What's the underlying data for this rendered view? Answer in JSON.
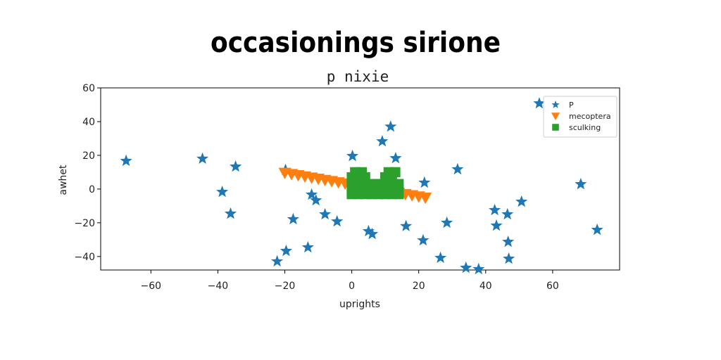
{
  "chart_data": {
    "type": "scatter",
    "title": "occasionings sirione",
    "subtitle": "p nixie",
    "x_label": "uprights",
    "y_label": "awhet",
    "xlim": [
      -75,
      80
    ],
    "ylim": [
      -48,
      60
    ],
    "xticks": [
      {
        "value": -60,
        "label": "−60"
      },
      {
        "value": -40,
        "label": "−40"
      },
      {
        "value": -20,
        "label": "−20"
      },
      0,
      20,
      40,
      60
    ],
    "yticks": [
      {
        "value": -40,
        "label": "−40"
      },
      {
        "value": -20,
        "label": "−20"
      },
      0,
      20,
      40,
      60
    ],
    "legend": "upper right",
    "series": [
      {
        "name": "P",
        "color": "#1f77b4",
        "marker": "star",
        "x": [
          -67.4,
          -44.6,
          -34.7,
          -38.7,
          -36.2,
          -19.8,
          -17.5,
          -19.6,
          -22.3,
          -13.1,
          -12,
          -10.7,
          -8,
          -4.4,
          0.2,
          11.6,
          9.1,
          13.1,
          5,
          6.1,
          16.2,
          21.7,
          21.3,
          28.4,
          26.5,
          31.6,
          34.1,
          37.9,
          42.7,
          43.2,
          46.5,
          46.7,
          46.9,
          50.7,
          56,
          68.4,
          73.3
        ],
        "values": [
          16.7,
          18,
          13.3,
          -1.7,
          -14.6,
          11.3,
          -17.9,
          -36.7,
          -42.9,
          -34.6,
          -3.3,
          -6.7,
          -15,
          -19.2,
          19.6,
          37,
          28.3,
          18.3,
          -25,
          -26.7,
          -22,
          3.8,
          -30.4,
          -20,
          -40.8,
          11.7,
          -46.7,
          -47.5,
          -12.5,
          -21.7,
          -15,
          -31.3,
          -41.3,
          -7.5,
          50.8,
          2.9,
          -24.2
        ]
      },
      {
        "name": "mecoptera",
        "color": "#ff7f0e",
        "marker": "triangle",
        "x": [
          -20,
          -18,
          -16,
          -14,
          -12,
          -10,
          -8,
          -6,
          -4,
          -2,
          0,
          2,
          4,
          6,
          8,
          10,
          12,
          14,
          16,
          18,
          20,
          22
        ],
        "values": [
          9.6,
          8.9,
          8.2,
          7.5,
          6.8,
          6.1,
          5.4,
          4.7,
          4.0,
          3.3,
          2.6,
          1.9,
          1.2,
          0.5,
          -0.2,
          -0.9,
          -1.6,
          -2.3,
          -3.0,
          -3.7,
          -4.4,
          -5.1
        ]
      },
      {
        "name": "sculking",
        "color": "#2ca02c",
        "marker": "square",
        "x": [
          0,
          2,
          4,
          6,
          8,
          10,
          12,
          14,
          0,
          2,
          4,
          6,
          8,
          10,
          12,
          14,
          0,
          2,
          4,
          6,
          8,
          10,
          12,
          14,
          0,
          2,
          4,
          10,
          12,
          1,
          3,
          11,
          13
        ],
        "values": [
          -3,
          -3,
          -3,
          -3,
          -3,
          -3,
          -3,
          -3,
          0,
          0,
          0,
          0,
          0,
          0,
          0,
          0,
          3,
          3,
          3,
          3,
          3,
          3,
          3,
          3,
          7,
          7,
          7,
          7,
          7,
          10,
          10,
          10,
          10
        ]
      }
    ]
  }
}
